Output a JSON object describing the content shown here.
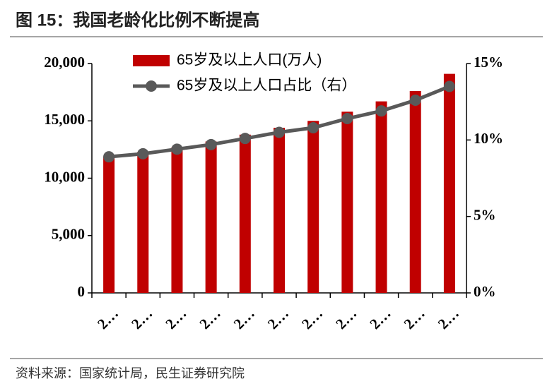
{
  "title": "图 15：我国老龄化比例不断提高",
  "source": "资料来源：国家统计局，民生证券研究院",
  "chart_data": {
    "type": "bar-line",
    "categories": [
      "2…",
      "2…",
      "2…",
      "2…",
      "2…",
      "2…",
      "2…",
      "2…",
      "2…",
      "2…",
      "2…"
    ],
    "series": [
      {
        "name": "65岁及以上人口(万人)",
        "color": "#c00000",
        "type": "bar",
        "values": [
          11900,
          12300,
          12700,
          13200,
          13800,
          14400,
          15000,
          15800,
          16700,
          17600,
          19100
        ]
      },
      {
        "name": "65岁及以上人口占比（右）",
        "color": "#595959",
        "type": "line",
        "axis": "y2",
        "values": [
          8.9,
          9.1,
          9.4,
          9.7,
          10.1,
          10.5,
          10.8,
          11.4,
          11.9,
          12.6,
          13.5
        ]
      }
    ],
    "ylim": [
      0,
      20000
    ],
    "yticks": [
      0,
      {
        "value": 5000,
        "label": "5,000"
      },
      {
        "value": 10000,
        "label": "10,000"
      },
      {
        "value": 15000,
        "label": "15,000"
      },
      {
        "value": 20000,
        "label": "20,000"
      }
    ],
    "y2lim": [
      0,
      15
    ],
    "y2ticks": [
      {
        "value": 0,
        "label": "0%"
      },
      {
        "value": 5,
        "label": "5%"
      },
      {
        "value": 10,
        "label": "10%"
      },
      {
        "value": 15,
        "label": "15%"
      }
    ]
  }
}
